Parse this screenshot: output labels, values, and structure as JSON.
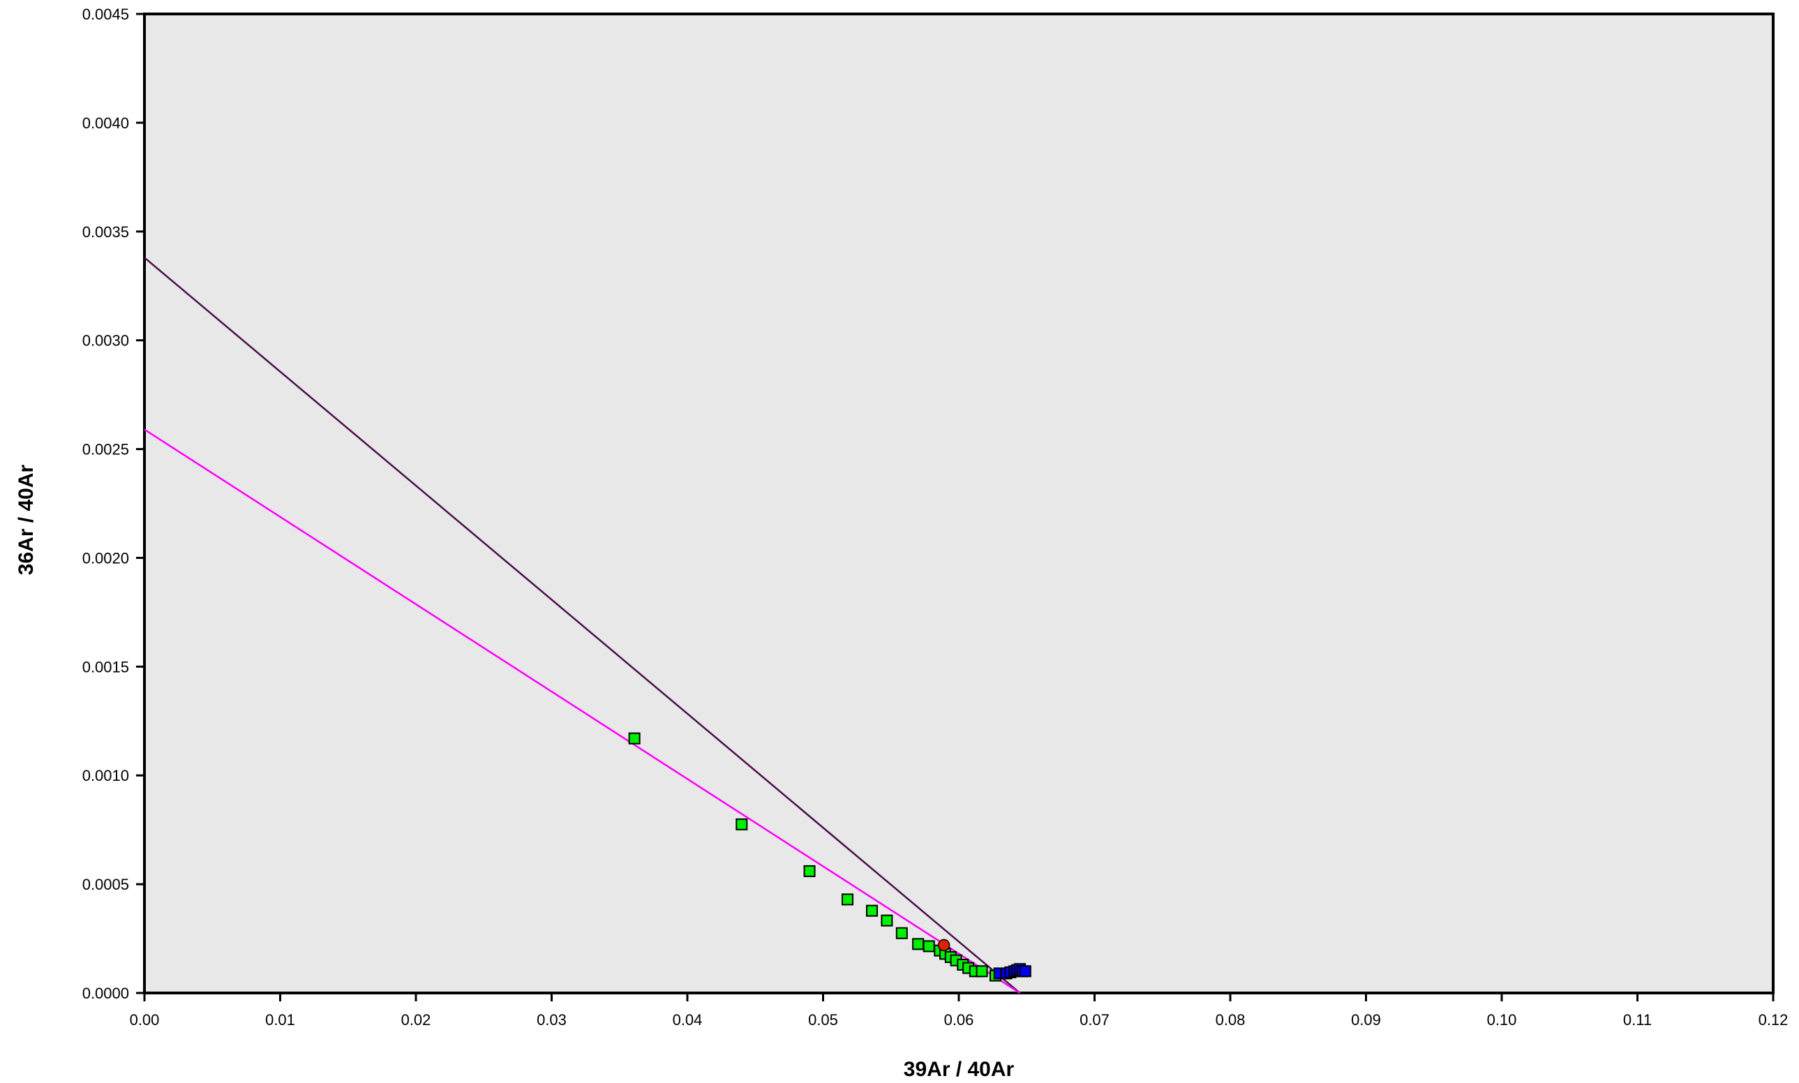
{
  "chart_data": {
    "type": "scatter",
    "title": "",
    "xlabel": "39Ar / 40Ar",
    "ylabel": "36Ar / 40Ar",
    "xlim": [
      0,
      0.12
    ],
    "ylim": [
      0,
      0.0045
    ],
    "x_ticks": [
      "0.00",
      "0.01",
      "0.02",
      "0.03",
      "0.04",
      "0.05",
      "0.06",
      "0.07",
      "0.08",
      "0.09",
      "0.10",
      "0.11",
      "0.12"
    ],
    "y_ticks": [
      "0.0000",
      "0.0005",
      "0.0010",
      "0.0015",
      "0.0020",
      "0.0025",
      "0.0030",
      "0.0035",
      "0.0040",
      "0.0045"
    ],
    "grid": false,
    "legend": "none",
    "plot_background": "#e8e8e8",
    "series": [
      {
        "marker": "square",
        "color": "#00ee00",
        "x": [
          0.0361,
          0.044,
          0.049,
          0.0518,
          0.0536,
          0.0547,
          0.0558,
          0.057,
          0.0578,
          0.0586,
          0.059,
          0.0594,
          0.0598,
          0.0603,
          0.0607,
          0.0612,
          0.0617,
          0.0627
        ],
        "y": [
          0.00117,
          0.000775,
          0.00056,
          0.00043,
          0.000378,
          0.000333,
          0.000275,
          0.000225,
          0.000215,
          0.000195,
          0.00018,
          0.000165,
          0.00015,
          0.00013,
          0.000115,
          0.0001,
          0.0001,
          8e-05
        ]
      },
      {
        "marker": "circle",
        "color": "#dd2200",
        "x": [
          0.0589
        ],
        "y": [
          0.00022
        ]
      },
      {
        "marker": "square",
        "color": "#0000ee",
        "x": [
          0.063,
          0.0635,
          0.0638,
          0.0641,
          0.0643,
          0.0645,
          0.0647,
          0.0649
        ],
        "y": [
          9e-05,
          9e-05,
          9.5e-05,
          0.0001,
          0.000105,
          0.00011,
          0.0001,
          0.0001
        ]
      }
    ],
    "lines": [
      {
        "color": "#4a0f4a",
        "x": [
          0,
          0.0645
        ],
        "y": [
          0.00338,
          0.0
        ]
      },
      {
        "color": "#ff00ff",
        "x": [
          0,
          0.0645
        ],
        "y": [
          0.00259,
          0.0
        ]
      }
    ]
  }
}
